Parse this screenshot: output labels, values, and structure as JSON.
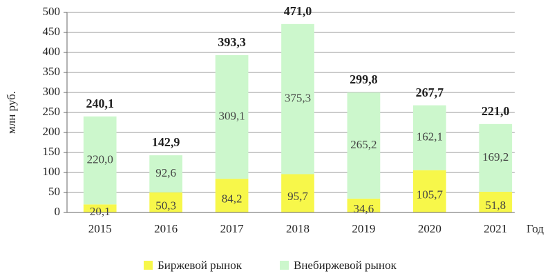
{
  "chart_data": {
    "type": "stacked_bar",
    "y_label": "млн руб.",
    "x_label": "Год",
    "categories": [
      "2015",
      "2016",
      "2017",
      "2018",
      "2019",
      "2020",
      "2021"
    ],
    "series": [
      {
        "name": "Биржевой рынок",
        "color": "#f7f74a",
        "values": [
          20.1,
          50.3,
          84.2,
          95.7,
          34.6,
          105.7,
          51.8
        ],
        "value_labels": [
          "20,1",
          "50,3",
          "84,2",
          "95,7",
          "34,6",
          "105,7",
          "51,8"
        ]
      },
      {
        "name": "Внебиржевой рынок",
        "color": "#ccf7cc",
        "values": [
          220.0,
          92.6,
          309.1,
          375.3,
          265.2,
          162.1,
          169.2
        ],
        "value_labels": [
          "220,0",
          "92,6",
          "309,1",
          "375,3",
          "265,2",
          "162,1",
          "169,2"
        ]
      }
    ],
    "totals": [
      240.1,
      142.9,
      393.3,
      471.0,
      299.8,
      267.7,
      221.0
    ],
    "total_labels": [
      "240,1",
      "142,9",
      "393,3",
      "471,0",
      "299,8",
      "267,7",
      "221,0"
    ],
    "ylim": [
      0,
      500
    ],
    "yticks": [
      0,
      50,
      100,
      150,
      200,
      250,
      300,
      350,
      400,
      450,
      500
    ],
    "grid": true
  }
}
